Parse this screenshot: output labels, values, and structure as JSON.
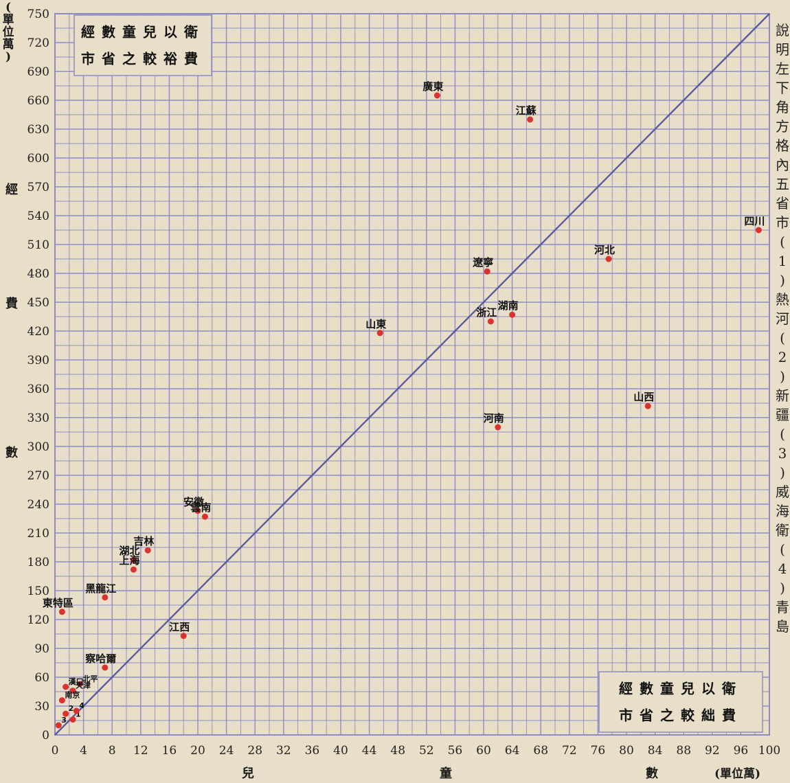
{
  "side_note": "說明 左下角方格內五省市(1)熱河(2)新疆(3)威海衛(4)青島",
  "y_unit": "(單位萬)",
  "y_label": "經費數",
  "x_label": "兒童數",
  "x_unit": "(單位萬)",
  "box_top": {
    "line1": "經數童兒以衛",
    "line2": "市省之較裕費"
  },
  "box_bottom": {
    "line1": "經數童兒以衛",
    "line2": "市省之較絀費"
  },
  "colors": {
    "grid": "#8c8cc4",
    "diagonal": "#5b5b9c",
    "point": "#d8332e",
    "background": "#e9dfc8"
  },
  "chart_data": {
    "type": "scatter",
    "xlim": [
      0,
      100
    ],
    "ylim": [
      0,
      750
    ],
    "x_ticks": [
      "0",
      "4",
      "8",
      "12",
      "16",
      "20",
      "24",
      "28",
      "32",
      "36",
      "40",
      "44",
      "48",
      "52",
      "56",
      "60",
      "64",
      "68",
      "72",
      "76",
      "80",
      "84",
      "88",
      "92",
      "96",
      "100"
    ],
    "y_ticks": [
      "0",
      "30",
      "60",
      "90",
      "120",
      "150",
      "180",
      "210",
      "240",
      "270",
      "300",
      "330",
      "360",
      "390",
      "420",
      "450",
      "480",
      "510",
      "540",
      "570",
      "600",
      "630",
      "660",
      "690",
      "720",
      "750"
    ],
    "grid": true,
    "reference_line": {
      "from": [
        0,
        0
      ],
      "to": [
        100,
        750
      ]
    },
    "points": [
      {
        "label": "廣東",
        "x": 53.5,
        "y": 665
      },
      {
        "label": "江蘇",
        "x": 66.5,
        "y": 640
      },
      {
        "label": "四川",
        "x": 98.5,
        "y": 525
      },
      {
        "label": "河北",
        "x": 77.5,
        "y": 495
      },
      {
        "label": "遼寧",
        "x": 60.5,
        "y": 482
      },
      {
        "label": "湖南",
        "x": 64,
        "y": 437
      },
      {
        "label": "浙江",
        "x": 61,
        "y": 430
      },
      {
        "label": "山東",
        "x": 45.5,
        "y": 418
      },
      {
        "label": "山西",
        "x": 83,
        "y": 342
      },
      {
        "label": "河南",
        "x": 62,
        "y": 320
      },
      {
        "label": "安徽",
        "x": 20,
        "y": 233
      },
      {
        "label": "雲南",
        "x": 21,
        "y": 227
      },
      {
        "label": "吉林",
        "x": 13,
        "y": 192
      },
      {
        "label": "湖北",
        "x": 11,
        "y": 182
      },
      {
        "label": "上海",
        "x": 11,
        "y": 172
      },
      {
        "label": "黑龍江",
        "x": 7,
        "y": 143
      },
      {
        "label": "東特區",
        "x": 1,
        "y": 128
      },
      {
        "label": "江西",
        "x": 18,
        "y": 103
      },
      {
        "label": "察哈爾",
        "x": 7,
        "y": 70
      },
      {
        "label": "北平",
        "x": 3.5,
        "y": 53
      },
      {
        "label": "漢口",
        "x": 1.5,
        "y": 50
      },
      {
        "label": "天津",
        "x": 2.5,
        "y": 46
      },
      {
        "label": "南京",
        "x": 1,
        "y": 36
      },
      {
        "label": "1",
        "x": 2.5,
        "y": 16
      },
      {
        "label": "2",
        "x": 1.5,
        "y": 22
      },
      {
        "label": "3",
        "x": 0.5,
        "y": 10
      },
      {
        "label": "4",
        "x": 3,
        "y": 25
      }
    ]
  }
}
